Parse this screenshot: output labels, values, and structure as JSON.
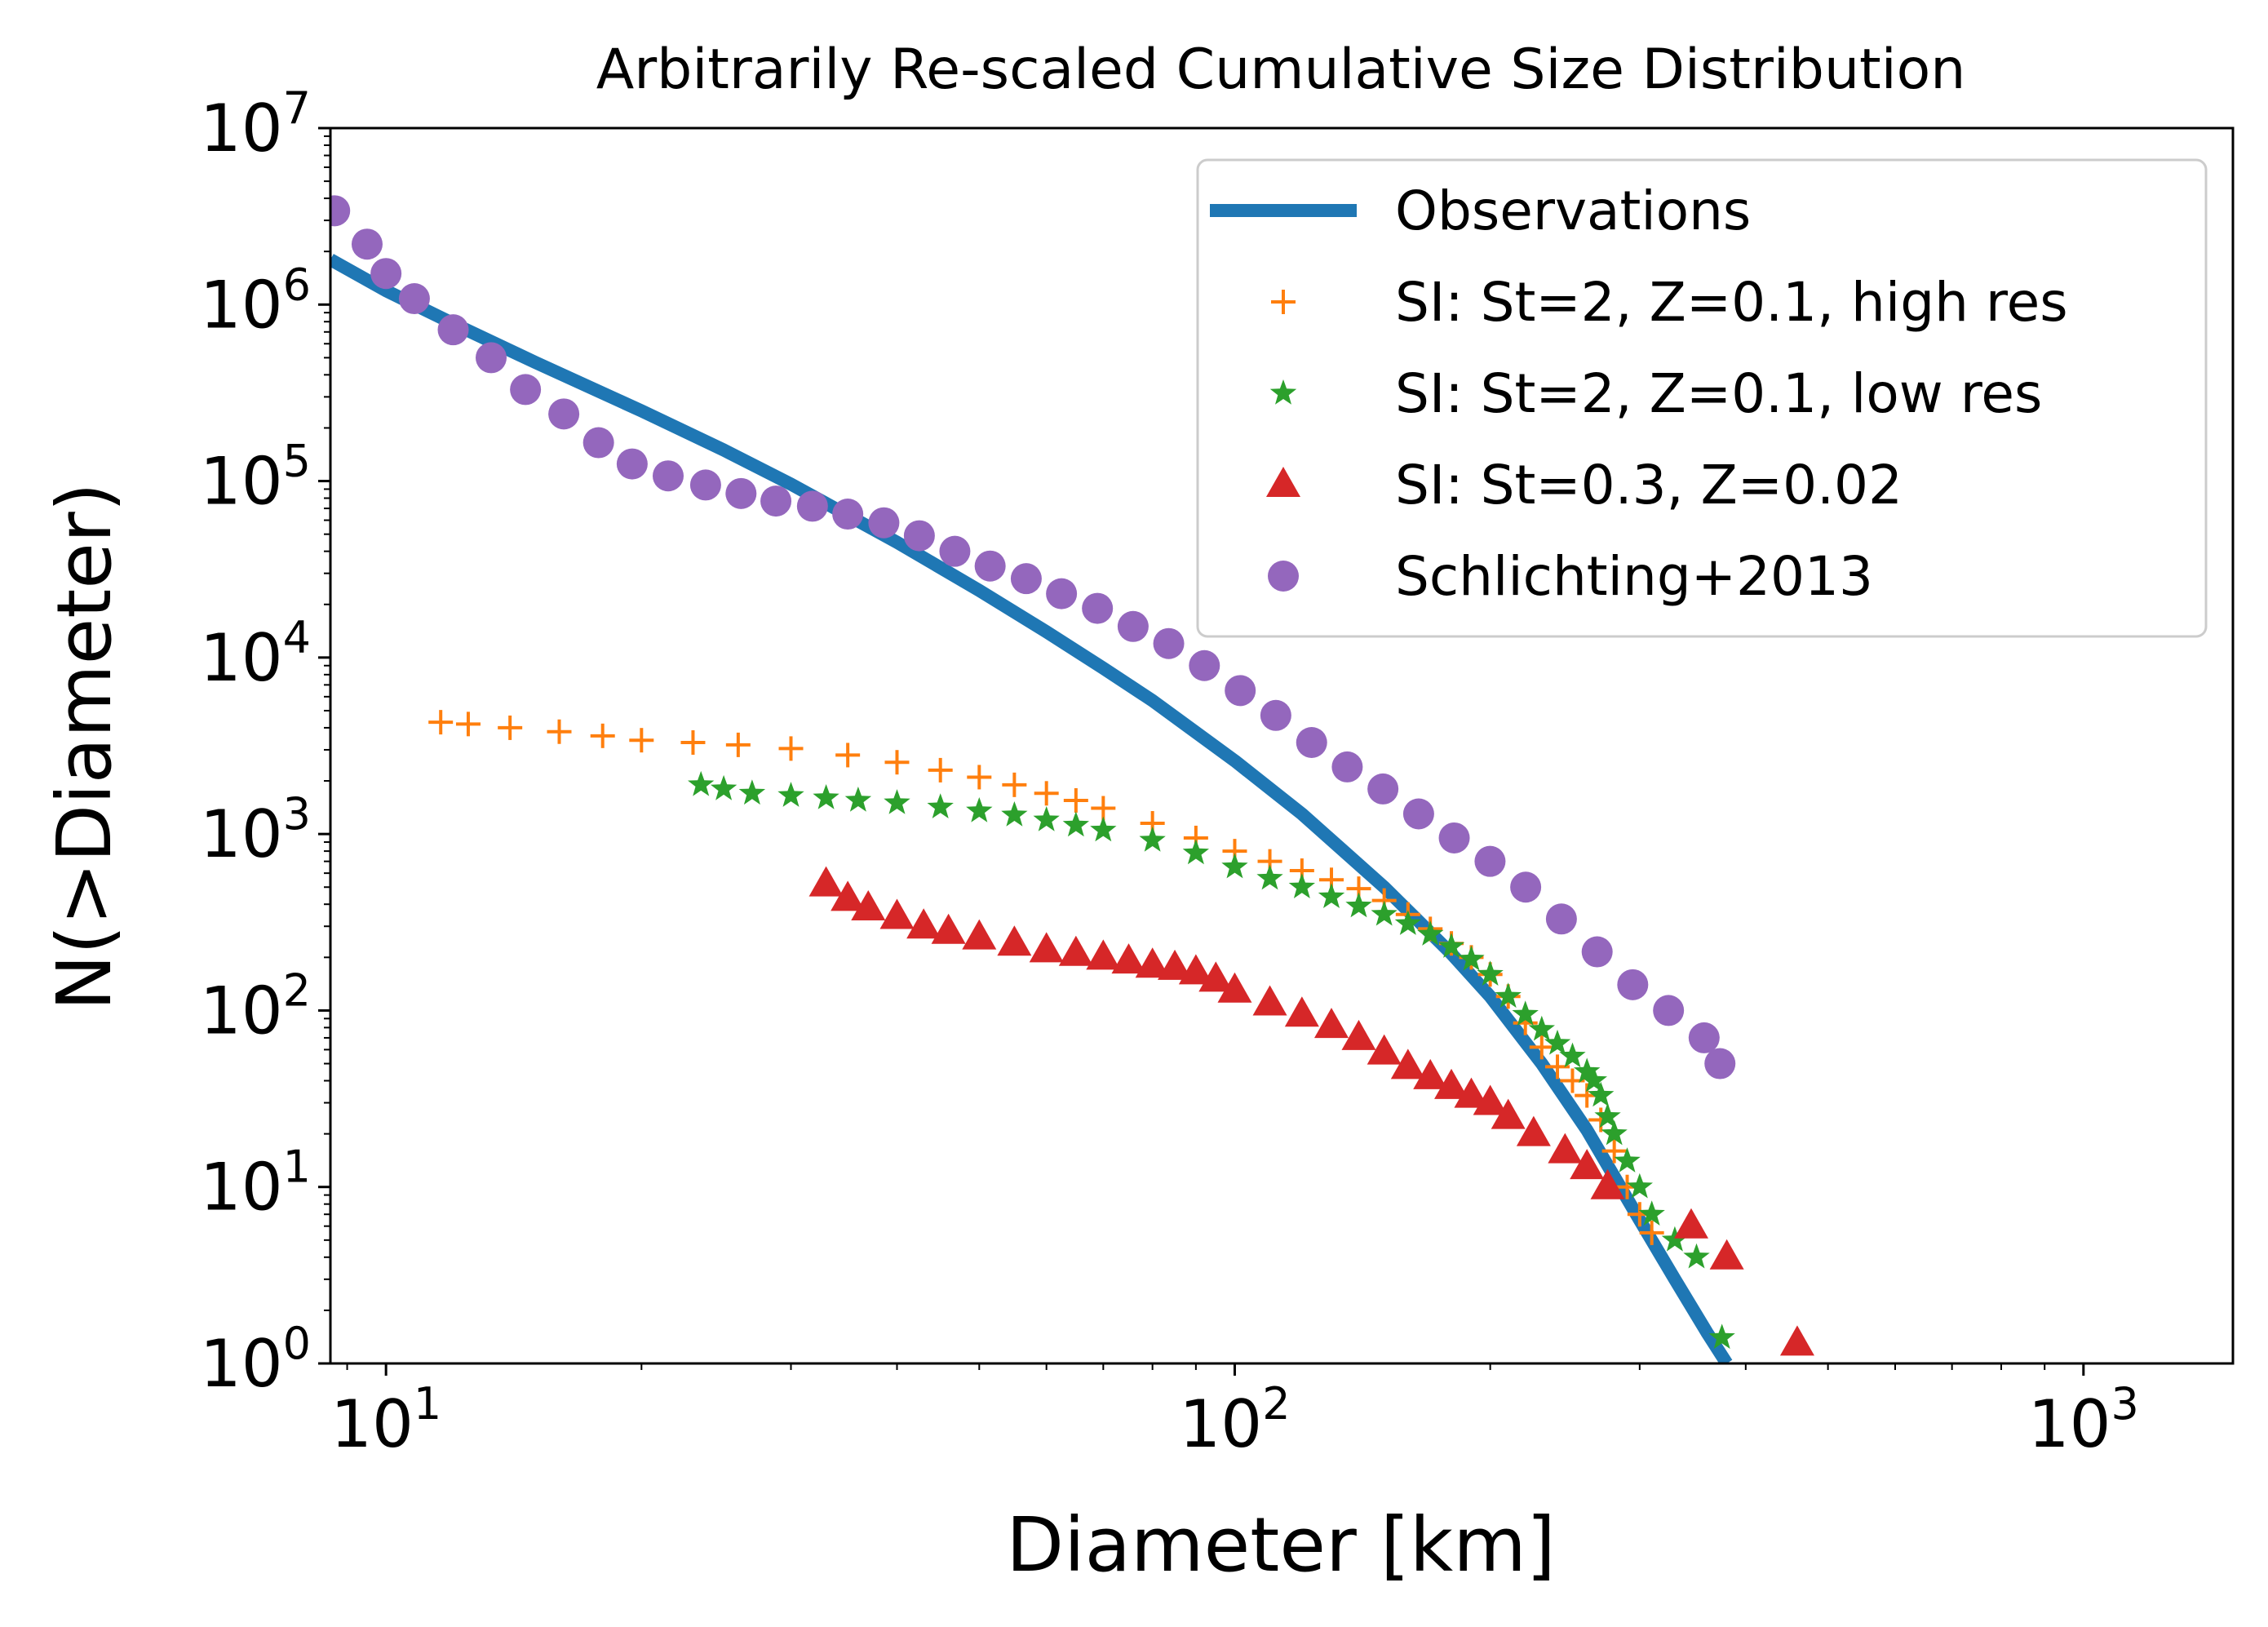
{
  "chart_data": {
    "type": "scatter",
    "title": "Arbitrarily Re-scaled Cumulative Size Distribution",
    "xlabel": "Diameter [km]",
    "ylabel": "N(>Diameter)",
    "xscale": "log",
    "yscale": "log",
    "xlim": [
      8.6,
      1500
    ],
    "ylim": [
      1,
      10000000
    ],
    "xticks": [
      {
        "value": 10,
        "base": "10",
        "exp": "1"
      },
      {
        "value": 100,
        "base": "10",
        "exp": "2"
      },
      {
        "value": 1000,
        "base": "10",
        "exp": "3"
      }
    ],
    "yticks": [
      {
        "value": 1,
        "base": "10",
        "exp": "0"
      },
      {
        "value": 10,
        "base": "10",
        "exp": "1"
      },
      {
        "value": 100,
        "base": "10",
        "exp": "2"
      },
      {
        "value": 1000,
        "base": "10",
        "exp": "3"
      },
      {
        "value": 10000,
        "base": "10",
        "exp": "4"
      },
      {
        "value": 100000,
        "base": "10",
        "exp": "5"
      },
      {
        "value": 1000000,
        "base": "10",
        "exp": "6"
      },
      {
        "value": 10000000,
        "base": "10",
        "exp": "7"
      }
    ],
    "legend_position": "top-right",
    "series": [
      {
        "name": "Observations",
        "style": "line",
        "color": "#1f77b4",
        "x": [
          8.6,
          10,
          12,
          15,
          20,
          25,
          30,
          40,
          50,
          60,
          70,
          80,
          100,
          120,
          150,
          180,
          200,
          230,
          260,
          300,
          330,
          360,
          380
        ],
        "y": [
          1800000,
          1200000,
          780000,
          470000,
          250000,
          150000,
          96000,
          45000,
          24000,
          14000,
          8700,
          5700,
          2600,
          1300,
          500,
          210,
          120,
          50,
          21,
          6.5,
          3,
          1.5,
          1
        ]
      },
      {
        "name": "SI: St=2, Z=0.1, high res",
        "style": "plus",
        "color": "#ff7f0e",
        "x": [
          11.6,
          12.5,
          14,
          16,
          18,
          20,
          23,
          26,
          30,
          35,
          40,
          45,
          50,
          55,
          60,
          65,
          70,
          80,
          90,
          100,
          110,
          120,
          130,
          140,
          150,
          160,
          170,
          180,
          190,
          200,
          210,
          220,
          230,
          240,
          250,
          260,
          270,
          280,
          290,
          300,
          310
        ],
        "y": [
          4300,
          4200,
          4000,
          3800,
          3600,
          3400,
          3300,
          3200,
          3050,
          2800,
          2550,
          2300,
          2100,
          1900,
          1700,
          1550,
          1400,
          1150,
          950,
          800,
          700,
          620,
          550,
          490,
          420,
          350,
          290,
          240,
          200,
          160,
          120,
          85,
          62,
          48,
          40,
          33,
          24,
          16,
          10,
          7,
          5.5
        ]
      },
      {
        "name": "SI: St=2, Z=0.1, low res",
        "style": "star",
        "color": "#2ca02c",
        "x": [
          23.5,
          25,
          27,
          30,
          33,
          36,
          40,
          45,
          50,
          55,
          60,
          65,
          70,
          80,
          90,
          100,
          110,
          120,
          130,
          140,
          150,
          160,
          170,
          180,
          190,
          200,
          210,
          220,
          230,
          240,
          250,
          260,
          265,
          270,
          275,
          280,
          290,
          300,
          310,
          330,
          350,
          375
        ],
        "y": [
          1900,
          1800,
          1700,
          1650,
          1600,
          1550,
          1500,
          1420,
          1350,
          1280,
          1200,
          1120,
          1050,
          920,
          780,
          650,
          560,
          500,
          440,
          390,
          350,
          310,
          270,
          230,
          195,
          160,
          120,
          95,
          78,
          65,
          55,
          45,
          40,
          33,
          25,
          20,
          14,
          10,
          7,
          5,
          4,
          1.4
        ]
      },
      {
        "name": "SI: St=0.3, Z=0.02",
        "style": "triangle",
        "color": "#d62728",
        "x": [
          33,
          35,
          37,
          40,
          43,
          46,
          50,
          55,
          60,
          65,
          70,
          75,
          80,
          85,
          90,
          95,
          100,
          110,
          120,
          130,
          140,
          150,
          160,
          170,
          180,
          190,
          200,
          210,
          225,
          245,
          260,
          275,
          345,
          380,
          460
        ],
        "y": [
          520,
          430,
          380,
          340,
          300,
          280,
          260,
          240,
          220,
          210,
          200,
          190,
          180,
          175,
          165,
          150,
          130,
          110,
          95,
          82,
          70,
          58,
          48,
          42,
          37,
          33,
          30,
          25,
          20,
          16,
          13,
          10,
          6,
          4,
          1.3
        ]
      },
      {
        "name": "Schlichting+2013",
        "style": "circle",
        "color": "#9467bd",
        "x": [
          8.7,
          9.5,
          10.0,
          10.8,
          12.0,
          13.3,
          14.6,
          16.2,
          17.8,
          19.5,
          21.5,
          23.8,
          26.2,
          28.8,
          31.8,
          35.0,
          38.6,
          42.5,
          46.8,
          51.5,
          56.8,
          62.5,
          68.9,
          75.9,
          83.6,
          92.1,
          101.5,
          111.8,
          123.2,
          135.7,
          149.5,
          164.7,
          181.4,
          199.9,
          220.2,
          242.6,
          267.3,
          294.4,
          324.4,
          357.3,
          373.0
        ],
        "y": [
          3400000,
          2200000,
          1500000,
          1080000,
          720000,
          500000,
          330000,
          240000,
          165000,
          125000,
          107000,
          95000,
          85000,
          77000,
          72000,
          65000,
          58000,
          49000,
          40000,
          33000,
          28000,
          23000,
          19000,
          15000,
          12000,
          9000,
          6500,
          4700,
          3300,
          2400,
          1800,
          1300,
          950,
          700,
          500,
          330,
          215,
          140,
          100,
          70,
          50
        ]
      }
    ]
  }
}
